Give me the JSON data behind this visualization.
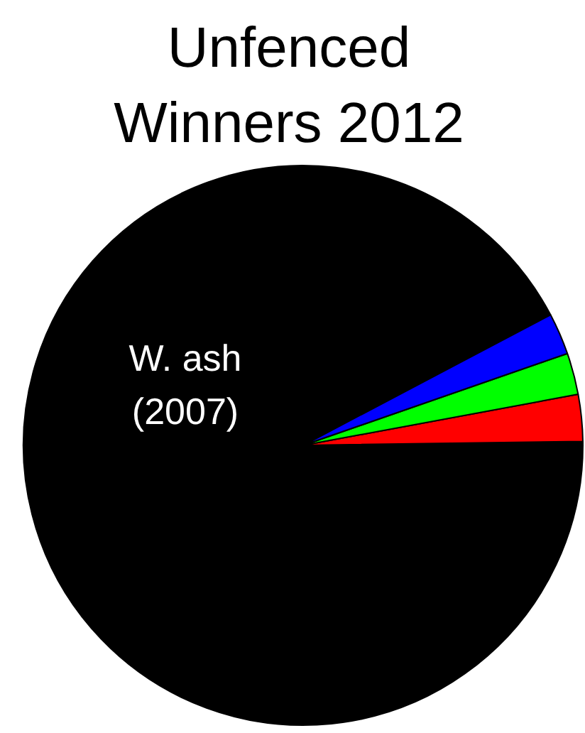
{
  "chart_data": {
    "type": "pie",
    "title": "Unfenced Winners 2012",
    "categories": [
      "W. ash (2007)",
      null,
      null,
      null
    ],
    "values": [
      92.5,
      2.7,
      2.4,
      2.4
    ],
    "colors": [
      "#000000",
      "#ff0000",
      "#00ff00",
      "#0000ff"
    ]
  }
}
